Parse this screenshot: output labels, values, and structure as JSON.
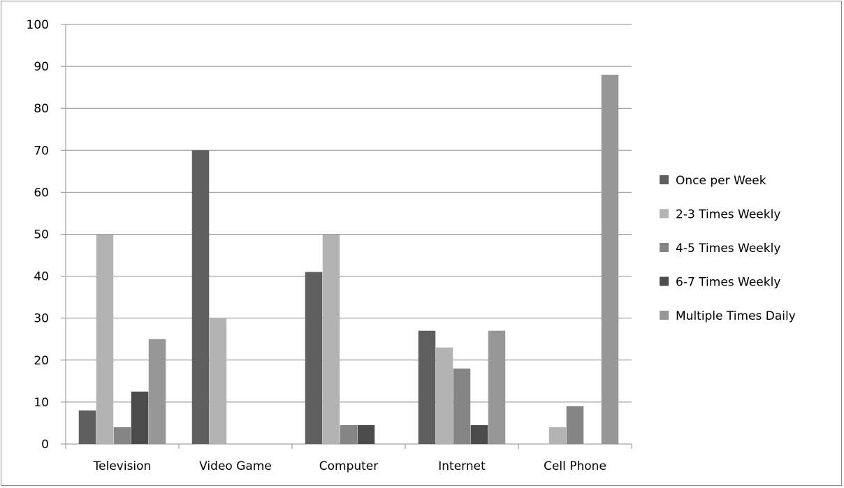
{
  "chart_data": {
    "type": "bar",
    "categories": [
      "Television",
      "Video Game",
      "Computer",
      "Internet",
      "Cell Phone"
    ],
    "series": [
      {
        "name": "Once per Week",
        "values": [
          8,
          70,
          41,
          27,
          0
        ],
        "color": "#5f5f5f"
      },
      {
        "name": "2-3 Times Weekly",
        "values": [
          50,
          30,
          50,
          23,
          4
        ],
        "color": "#b3b3b3"
      },
      {
        "name": "4-5 Times Weekly",
        "values": [
          4,
          0,
          4.5,
          18,
          9
        ],
        "color": "#858585"
      },
      {
        "name": "6-7 Times Weekly",
        "values": [
          12.5,
          0,
          4.5,
          4.5,
          0
        ],
        "color": "#4b4b4b"
      },
      {
        "name": "Multiple Times Daily",
        "values": [
          25,
          0,
          0,
          27,
          88
        ],
        "color": "#979797"
      }
    ],
    "ylim": [
      0,
      100
    ],
    "yticks": [
      0,
      10,
      20,
      30,
      40,
      50,
      60,
      70,
      80,
      90,
      100
    ],
    "grid": true,
    "legend_position": "right"
  }
}
